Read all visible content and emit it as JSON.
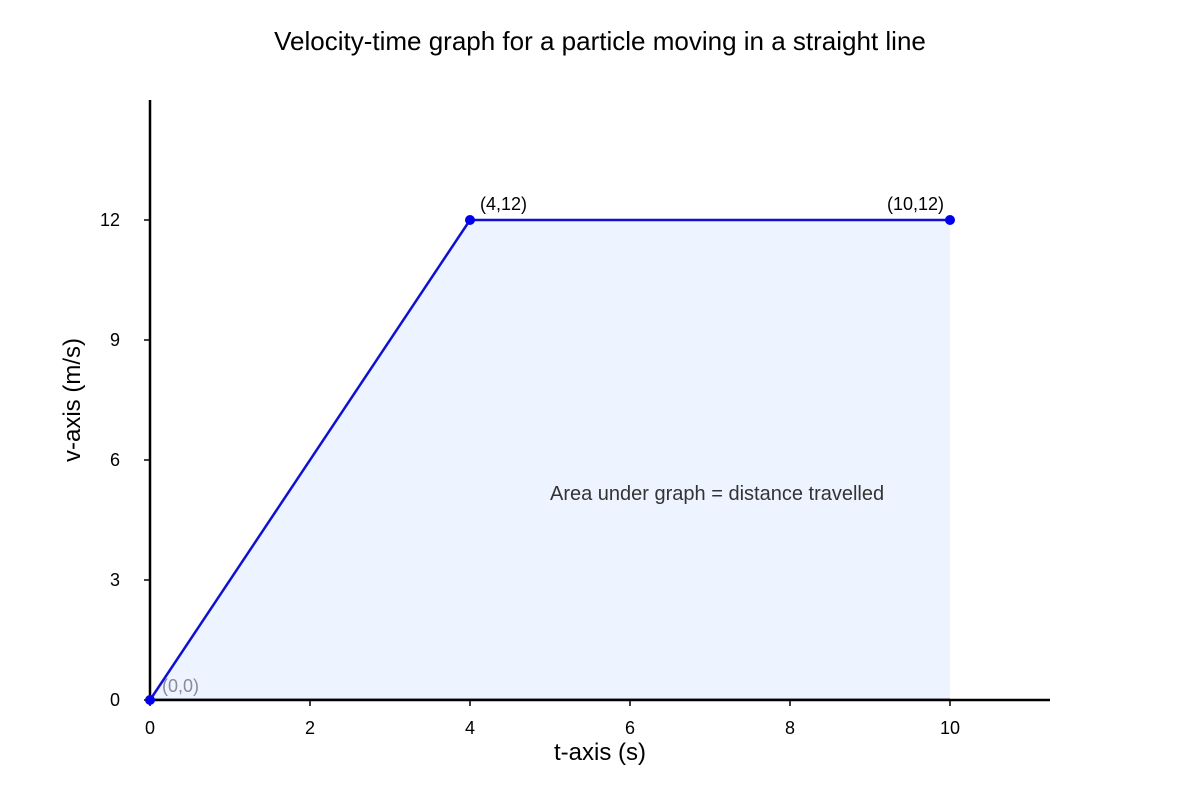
{
  "chart_data": {
    "type": "area",
    "title": "Velocity-time graph for a particle moving in a straight line",
    "xlabel": "t-axis (s)",
    "ylabel": "v-axis (m/s)",
    "x": [
      0,
      4,
      10
    ],
    "series": [
      {
        "values": [
          0,
          12,
          12
        ]
      }
    ],
    "xlim": [
      0,
      11.25
    ],
    "ylim": [
      0,
      15
    ],
    "xticks": [
      "0",
      "2",
      "4",
      "6",
      "8",
      "10"
    ],
    "yticks": [
      "0",
      "3",
      "6",
      "9",
      "12"
    ],
    "point_labels": [
      "(0,0)",
      "(4,12)",
      "(10,12)"
    ],
    "annotation": "Area under graph = distance travelled",
    "grid": false,
    "colors": {
      "line": "#1010d0",
      "point": "#0000ee",
      "fill": "#eef4ff",
      "axis": "#000000"
    }
  }
}
